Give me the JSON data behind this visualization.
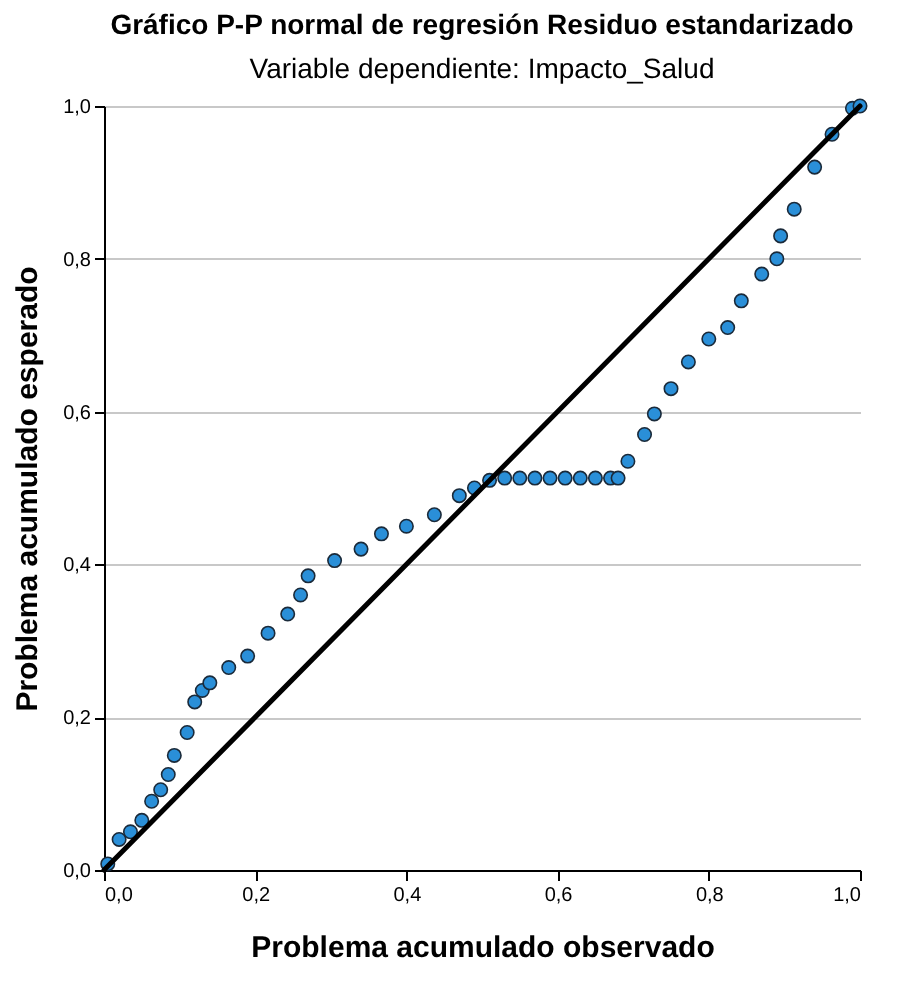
{
  "chart_data": {
    "type": "scatter",
    "title": "Gráfico P-P normal de regresión Residuo estandarizado",
    "subtitle": "Variable dependiente: Impacto_Salud",
    "xlabel": "Problema acumulado observado",
    "ylabel": "Problema acumulado esperado",
    "series": [
      {
        "marker": "circle",
        "color": "#2a8fd8",
        "x": [
          0.005,
          0.02,
          0.035,
          0.05,
          0.063,
          0.075,
          0.085,
          0.093,
          0.11,
          0.12,
          0.13,
          0.14,
          0.165,
          0.19,
          0.217,
          0.243,
          0.26,
          0.27,
          0.305,
          0.34,
          0.367,
          0.4,
          0.437,
          0.47,
          0.49,
          0.51,
          0.53,
          0.55,
          0.57,
          0.59,
          0.61,
          0.63,
          0.65,
          0.67,
          0.68,
          0.693,
          0.715,
          0.728,
          0.75,
          0.773,
          0.8,
          0.825,
          0.843,
          0.87,
          0.89,
          0.895,
          0.913,
          0.94,
          0.963,
          0.99,
          1.0
        ],
        "values": [
          0.008,
          0.04,
          0.05,
          0.065,
          0.09,
          0.105,
          0.125,
          0.15,
          0.18,
          0.22,
          0.235,
          0.245,
          0.265,
          0.28,
          0.31,
          0.335,
          0.36,
          0.385,
          0.405,
          0.42,
          0.44,
          0.45,
          0.465,
          0.49,
          0.5,
          0.51,
          0.513,
          0.513,
          0.513,
          0.513,
          0.513,
          0.513,
          0.513,
          0.513,
          0.513,
          0.535,
          0.57,
          0.597,
          0.63,
          0.665,
          0.695,
          0.71,
          0.745,
          0.78,
          0.8,
          0.83,
          0.865,
          0.92,
          0.963,
          0.997,
          1.0
        ]
      },
      {
        "type": "line",
        "color": "#000000",
        "x": [
          0.0,
          1.0
        ],
        "values": [
          0.0,
          1.0
        ]
      }
    ],
    "xlim": [
      0,
      1
    ],
    "ylim": [
      0,
      1
    ],
    "xticks": [
      {
        "value": 0,
        "label": "0,0"
      },
      {
        "value": 0.2,
        "label": "0,2"
      },
      {
        "value": 0.4,
        "label": "0,4"
      },
      {
        "value": 0.6,
        "label": "0,6"
      },
      {
        "value": 0.8,
        "label": "0,8"
      },
      {
        "value": 1,
        "label": "1,0"
      }
    ],
    "yticks": [
      {
        "value": 0,
        "label": "0,0"
      },
      {
        "value": 0.2,
        "label": "0,2"
      },
      {
        "value": 0.4,
        "label": "0,4"
      },
      {
        "value": 0.6,
        "label": "0,6"
      },
      {
        "value": 0.8,
        "label": "0,8"
      },
      {
        "value": 1,
        "label": "1,0"
      }
    ],
    "grid": "y"
  }
}
